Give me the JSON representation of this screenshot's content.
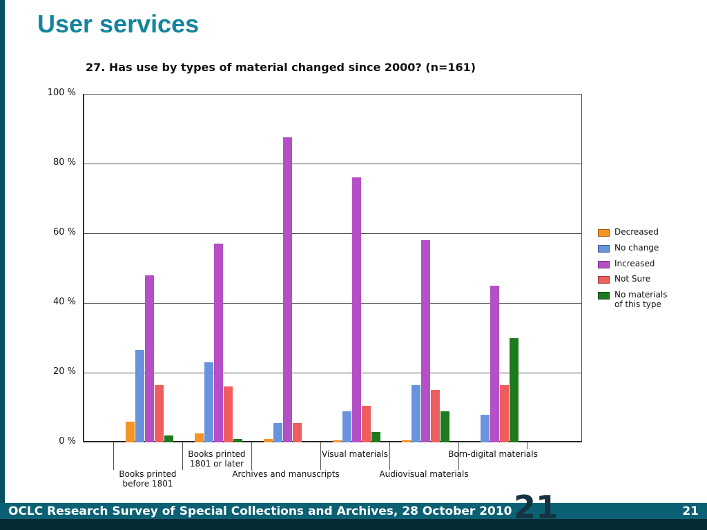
{
  "slide": {
    "title": "User services",
    "footer_text": "OCLC Research Survey of Special Collections and Archives, 28 October 2010",
    "page_number": "21",
    "big_page_number": "21"
  },
  "colors": {
    "title": "#12849e",
    "left_stripe": "#0a4f60",
    "footer_bar": "#0b6173",
    "footer_bottom": "#072b35",
    "big_number": "#16333f",
    "axis": "#333333"
  },
  "chart_data": {
    "type": "bar",
    "title": "27. Has use by types of material changed since 2000? (n=161)",
    "xlabel": "",
    "ylabel": "",
    "ylim": [
      0,
      100
    ],
    "grid": true,
    "legend_position": "right",
    "y_ticks": [
      {
        "label": "0 %",
        "value": 0
      },
      {
        "label": "20 %",
        "value": 20
      },
      {
        "label": "40 %",
        "value": 40
      },
      {
        "label": "60 %",
        "value": 60
      },
      {
        "label": "80 %",
        "value": 80
      },
      {
        "label": "100 %",
        "value": 100
      }
    ],
    "categories": [
      {
        "label": "Books printed before 1801",
        "lines": [
          "Books printed",
          "before 1801"
        ],
        "row": 2
      },
      {
        "label": "Books printed 1801 or later",
        "lines": [
          "Books printed",
          "1801 or later"
        ],
        "row": 1
      },
      {
        "label": "Archives and manuscripts",
        "lines": [
          "Archives and manuscripts"
        ],
        "row": 2
      },
      {
        "label": "Visual materials",
        "lines": [
          "Visual materials"
        ],
        "row": 1
      },
      {
        "label": "Audiovisual materials",
        "lines": [
          "Audiovisual materials"
        ],
        "row": 2
      },
      {
        "label": "Born-digital materials",
        "lines": [
          "Born-digital materials"
        ],
        "row": 1
      }
    ],
    "series": [
      {
        "name": "Decreased",
        "color": "#f59426",
        "values": [
          6,
          2.5,
          1,
          0.5,
          0.5,
          0
        ]
      },
      {
        "name": "No change",
        "color": "#6a93dd",
        "values": [
          26.5,
          23,
          5.5,
          9,
          16.5,
          8
        ]
      },
      {
        "name": "Increased",
        "color": "#b44fc6",
        "values": [
          48,
          57,
          87.5,
          76,
          58,
          45
        ]
      },
      {
        "name": "Not Sure",
        "color": "#ef5e5e",
        "values": [
          16.5,
          16,
          5.5,
          10.5,
          15,
          16.5
        ]
      },
      {
        "name": "No materials of this type",
        "legend_lines": [
          "No materials",
          "of this type"
        ],
        "color": "#1e7a1e",
        "values": [
          2,
          1,
          0,
          3,
          9,
          30
        ]
      }
    ]
  }
}
